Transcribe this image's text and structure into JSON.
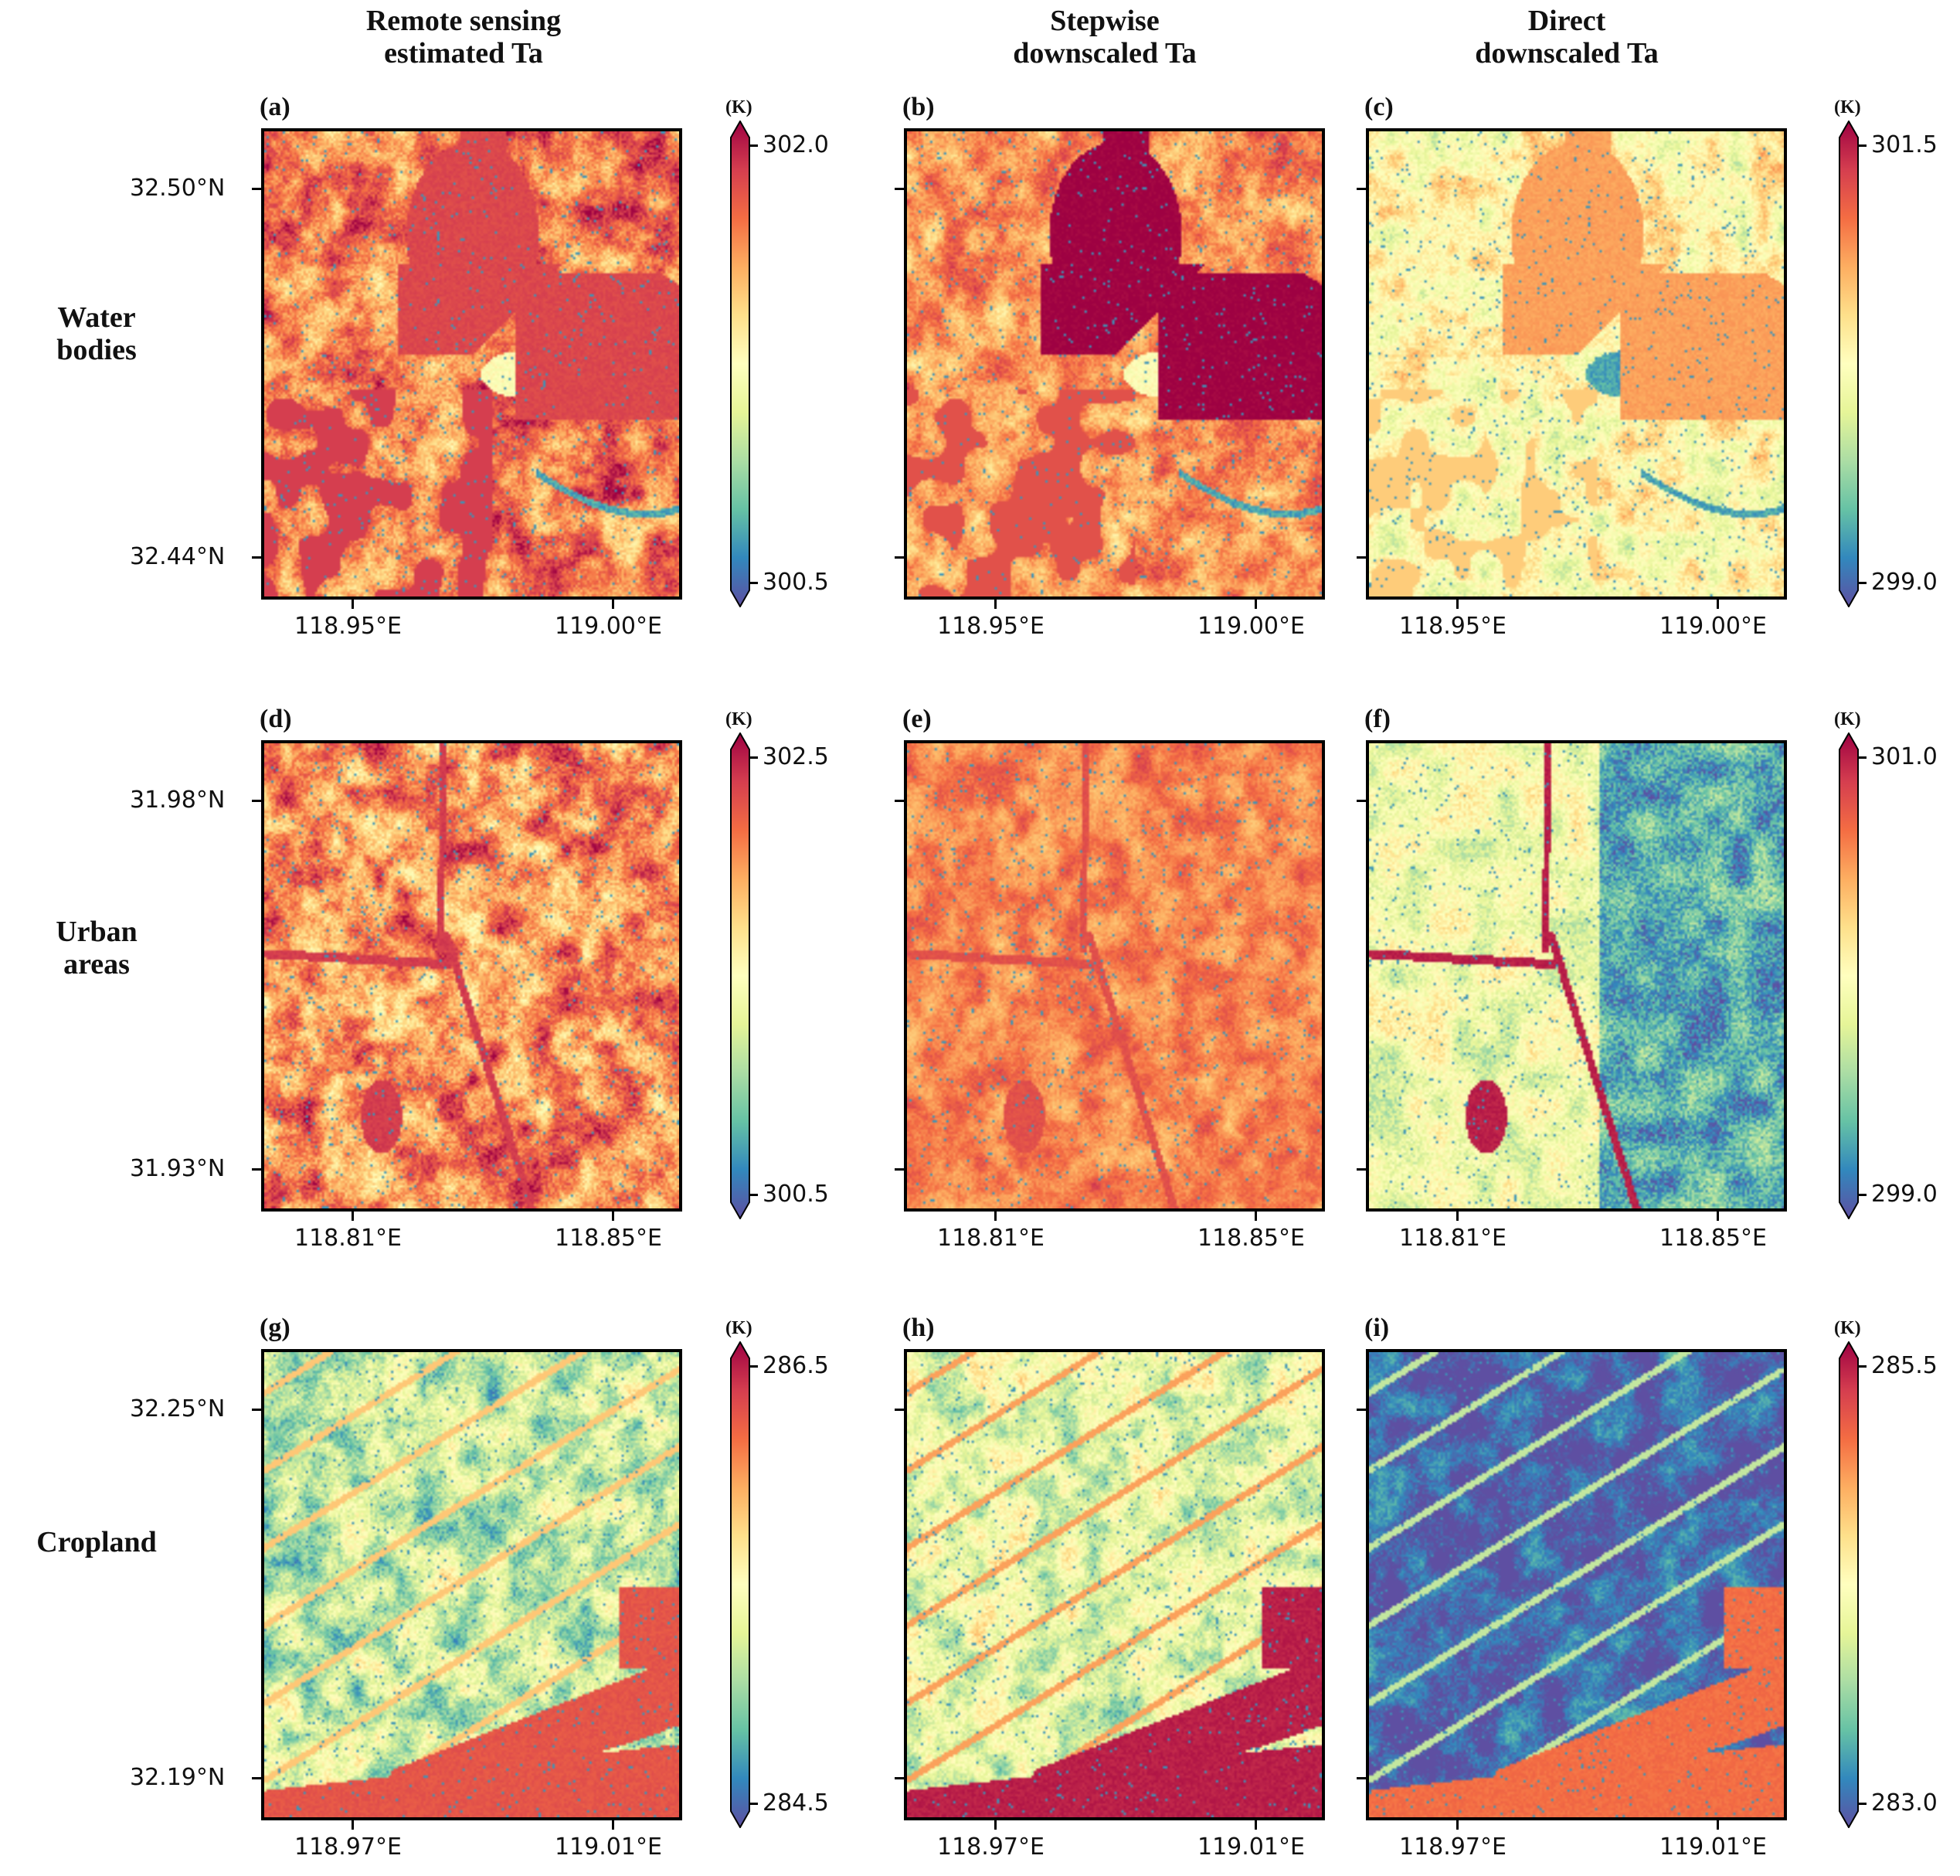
{
  "column_titles": [
    "Remote sensing\nestimated Ta",
    "Stepwise\ndownscaled Ta",
    "Direct\ndownscaled Ta"
  ],
  "row_labels": [
    "Water\nbodies",
    "Urban\nareas",
    "Cropland"
  ],
  "colormap": "Spectral_r",
  "colormap_colors": [
    "#5e4fa2",
    "#3288bd",
    "#66c2a5",
    "#abdda4",
    "#e6f598",
    "#ffffbf",
    "#fee08b",
    "#fdae61",
    "#f46d43",
    "#d53e4f",
    "#9e0142"
  ],
  "rows": [
    {
      "scene": "water",
      "lat_ticks": [
        "32.50°N",
        "32.44°N"
      ],
      "lon_ticks": [
        "118.95°E",
        "119.00°E"
      ],
      "colorbars": [
        {
          "unit": "(K)",
          "max": "302.0",
          "min": "300.5"
        },
        {
          "unit": "(K)",
          "max": "301.5",
          "min": "299.0"
        }
      ],
      "panels": [
        {
          "label": "(a)",
          "background_level": 0.78,
          "feature_level": 0.88,
          "noise": 0.18,
          "background_color": "#fdae61"
        },
        {
          "label": "(b)",
          "background_level": 0.74,
          "feature_level": 1.0,
          "noise": 0.14,
          "background_color": "#f88d52"
        },
        {
          "label": "(c)",
          "background_level": 0.52,
          "feature_level": 0.72,
          "noise": 0.16,
          "background_color": "#e6f598"
        }
      ]
    },
    {
      "scene": "urban",
      "lat_ticks": [
        "31.98°N",
        "31.93°N"
      ],
      "lon_ticks": [
        "118.81°E",
        "118.85°E"
      ],
      "colorbars": [
        {
          "unit": "(K)",
          "max": "302.5",
          "min": "300.5"
        },
        {
          "unit": "(K)",
          "max": "301.0",
          "min": "299.0"
        }
      ],
      "panels": [
        {
          "label": "(d)",
          "background_level": 0.75,
          "feature_level": 0.9,
          "noise": 0.2,
          "background_color": "#fdae61"
        },
        {
          "label": "(e)",
          "background_level": 0.76,
          "feature_level": 0.86,
          "noise": 0.1,
          "background_color": "#f88d52"
        },
        {
          "label": "(f)",
          "background_level": 0.3,
          "feature_level": 0.95,
          "noise": 0.18,
          "background_color": "#66c2a5"
        }
      ]
    },
    {
      "scene": "cropland",
      "lat_ticks": [
        "32.25°N",
        "32.19°N"
      ],
      "lon_ticks": [
        "118.97°E",
        "119.01°E"
      ],
      "colorbars": [
        {
          "unit": "(K)",
          "max": "286.5",
          "min": "284.5"
        },
        {
          "unit": "(K)",
          "max": "285.5",
          "min": "283.0"
        }
      ],
      "panels": [
        {
          "label": "(g)",
          "background_level": 0.35,
          "feature_level": 0.85,
          "noise": 0.2,
          "background_color": "#66c2a5"
        },
        {
          "label": "(h)",
          "background_level": 0.42,
          "feature_level": 0.95,
          "noise": 0.18,
          "background_color": "#abdda4"
        },
        {
          "label": "(i)",
          "background_level": 0.04,
          "feature_level": 0.8,
          "noise": 0.12,
          "background_color": "#5e4fa2"
        }
      ]
    }
  ]
}
